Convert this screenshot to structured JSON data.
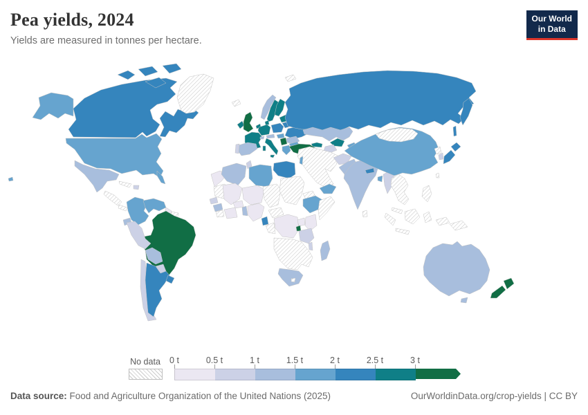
{
  "header": {
    "title": "Pea yields, 2024",
    "subtitle": "Yields are measured in tonnes per hectare."
  },
  "logo": {
    "line1": "Our World",
    "line2": "in Data"
  },
  "legend": {
    "no_data_label": "No data",
    "bins": [
      {
        "tick": "0 t",
        "label": "0–0.5 t",
        "color": "#ebe7f2"
      },
      {
        "tick": "0.5 t",
        "label": "0.5–1 t",
        "color": "#ccd1e6"
      },
      {
        "tick": "1 t",
        "label": "1–1.5 t",
        "color": "#a8bedd"
      },
      {
        "tick": "1.5 t",
        "label": "1.5–2 t",
        "color": "#66a4cf"
      },
      {
        "tick": "2 t",
        "label": "2–2.5 t",
        "color": "#3585bd"
      },
      {
        "tick": "2.5 t",
        "label": "2.5–3 t",
        "color": "#0f7f87"
      },
      {
        "tick": "3 t",
        "label": "3+ t",
        "color": "#116e45"
      }
    ]
  },
  "footer": {
    "source_label": "Data source:",
    "source_text": " Food and Agriculture Organization of the United Nations (2025)",
    "link_text": "OurWorldinData.org/crop-yields | CC BY"
  },
  "chart_data": {
    "type": "choropleth",
    "title": "Pea yields, 2024",
    "unit": "tonnes per hectare",
    "year": 2024,
    "legend_position": "bottom",
    "band_colors": {
      "b1": "#ebe7f2",
      "b2": "#ccd1e6",
      "b3": "#a8bedd",
      "b4": "#66a4cf",
      "b5": "#3585bd",
      "b6": "#0f7f87",
      "b7": "#116e45",
      "nd": "no-data"
    },
    "band_labels": {
      "b1": "0–0.5 t",
      "b2": "0.5–1 t",
      "b3": "1–1.5 t",
      "b4": "1.5–2 t",
      "b5": "2–2.5 t",
      "b6": "2.5–3 t",
      "b7": "3+ t",
      "nd": "No data"
    },
    "regions": [
      {
        "id": "alaska",
        "name": "United States (Alaska)",
        "band": "b4"
      },
      {
        "id": "usa",
        "name": "United States",
        "band": "b4"
      },
      {
        "id": "hawaii",
        "name": "Hawaii",
        "band": "b4"
      },
      {
        "id": "canada",
        "name": "Canada",
        "band": "b5"
      },
      {
        "id": "canada-east",
        "name": "Canada (Quebec-Labrador)",
        "band": "b5"
      },
      {
        "id": "arctic1",
        "name": "Canadian Arctic",
        "band": "b5"
      },
      {
        "id": "arctic2",
        "name": "Canadian Arctic",
        "band": "b5"
      },
      {
        "id": "arctic3",
        "name": "Canadian Arctic",
        "band": "b5"
      },
      {
        "id": "arctic4",
        "name": "Canadian Arctic",
        "band": "b5"
      },
      {
        "id": "greenland",
        "name": "Greenland",
        "band": "nd"
      },
      {
        "id": "iceland",
        "name": "Iceland",
        "band": "nd"
      },
      {
        "id": "mexico",
        "name": "Mexico",
        "band": "b3"
      },
      {
        "id": "central-america",
        "name": "Central America",
        "band": "nd"
      },
      {
        "id": "panama",
        "name": "Panama / Costa Rica",
        "band": "nd"
      },
      {
        "id": "cuba",
        "name": "Cuba",
        "band": "nd"
      },
      {
        "id": "hispaniola",
        "name": "Dominican Republic",
        "band": "b2"
      },
      {
        "id": "colombia",
        "name": "Colombia",
        "band": "b4"
      },
      {
        "id": "venezuela",
        "name": "Venezuela",
        "band": "b4"
      },
      {
        "id": "guyana",
        "name": "Guyana",
        "band": "b1"
      },
      {
        "id": "suriname",
        "name": "Suriname / Fr. Guiana",
        "band": "nd"
      },
      {
        "id": "ecuador",
        "name": "Ecuador",
        "band": "b3"
      },
      {
        "id": "peru",
        "name": "Peru",
        "band": "b2"
      },
      {
        "id": "brazil",
        "name": "Brazil",
        "band": "b7"
      },
      {
        "id": "bolivia",
        "name": "Bolivia",
        "band": "b3"
      },
      {
        "id": "paraguay",
        "name": "Paraguay",
        "band": "b2"
      },
      {
        "id": "chile",
        "name": "Chile",
        "band": "b2"
      },
      {
        "id": "argentina",
        "name": "Argentina",
        "band": "b5"
      },
      {
        "id": "uruguay",
        "name": "Uruguay",
        "band": "b5"
      },
      {
        "id": "ireland",
        "name": "Ireland",
        "band": "b6"
      },
      {
        "id": "uk",
        "name": "United Kingdom",
        "band": "b7"
      },
      {
        "id": "norway",
        "name": "Norway",
        "band": "b3"
      },
      {
        "id": "sweden",
        "name": "Sweden",
        "band": "b6"
      },
      {
        "id": "finland",
        "name": "Finland",
        "band": "b6"
      },
      {
        "id": "denmark",
        "name": "Denmark",
        "band": "b6"
      },
      {
        "id": "germany",
        "name": "Germany",
        "band": "b6"
      },
      {
        "id": "benelux",
        "name": "Benelux",
        "band": "b6"
      },
      {
        "id": "france",
        "name": "France",
        "band": "b6"
      },
      {
        "id": "spain",
        "name": "Spain",
        "band": "b3"
      },
      {
        "id": "portugal",
        "name": "Portugal",
        "band": "b2"
      },
      {
        "id": "italy",
        "name": "Italy",
        "band": "b6"
      },
      {
        "id": "sicily",
        "name": "Italy (Sicily)",
        "band": "b6"
      },
      {
        "id": "sardinia",
        "name": "Italy (Sardinia)",
        "band": "b6"
      },
      {
        "id": "switzerland",
        "name": "Switzerland",
        "band": "b3"
      },
      {
        "id": "austria-czech",
        "name": "Austria / Czechia",
        "band": "b3"
      },
      {
        "id": "poland",
        "name": "Poland",
        "band": "b5"
      },
      {
        "id": "baltics",
        "name": "Baltic states",
        "band": "b6"
      },
      {
        "id": "belarus",
        "name": "Belarus",
        "band": "b5"
      },
      {
        "id": "ukraine",
        "name": "Ukraine",
        "band": "b5"
      },
      {
        "id": "romania",
        "name": "Romania",
        "band": "b3"
      },
      {
        "id": "hungary",
        "name": "Hungary",
        "band": "b4"
      },
      {
        "id": "serbia",
        "name": "Serbia / Bosnia",
        "band": "b7"
      },
      {
        "id": "bulgaria",
        "name": "Bulgaria",
        "band": "b4"
      },
      {
        "id": "greece",
        "name": "Greece",
        "band": "b4"
      },
      {
        "id": "svalbard",
        "name": "Svalbard",
        "band": "nd"
      },
      {
        "id": "russia",
        "name": "Russia",
        "band": "b5"
      },
      {
        "id": "kamchatka",
        "name": "Russia (Kamchatka)",
        "band": "b5"
      },
      {
        "id": "sakhalin",
        "name": "Russia (Sakhalin)",
        "band": "b5"
      },
      {
        "id": "kazakhstan",
        "name": "Kazakhstan",
        "band": "b3"
      },
      {
        "id": "uzbekistan",
        "name": "Uzbekistan",
        "band": "b6"
      },
      {
        "id": "turkmenistan",
        "name": "Turkmenistan",
        "band": "b2"
      },
      {
        "id": "caucasus",
        "name": "Georgia / Azerbaijan",
        "band": "b6"
      },
      {
        "id": "kyrgyzstan",
        "name": "Kyrgyzstan / Tajikistan",
        "band": "b4"
      },
      {
        "id": "turkey",
        "name": "Turkey",
        "band": "b7"
      },
      {
        "id": "middle-east",
        "name": "Middle East (Syria, Iraq, Iran, Saudi Arabia)",
        "band": "nd"
      },
      {
        "id": "israel",
        "name": "Israel / Lebanon",
        "band": "b4"
      },
      {
        "id": "yemen",
        "name": "Yemen",
        "band": "b4"
      },
      {
        "id": "afghanistan",
        "name": "Afghanistan",
        "band": "b2"
      },
      {
        "id": "pakistan",
        "name": "Pakistan",
        "band": "b3"
      },
      {
        "id": "india",
        "name": "India",
        "band": "b3"
      },
      {
        "id": "nepal",
        "name": "Nepal",
        "band": "b5"
      },
      {
        "id": "bangladesh",
        "name": "Bangladesh",
        "band": "b4"
      },
      {
        "id": "sri-lanka",
        "name": "Sri Lanka",
        "band": "nd"
      },
      {
        "id": "myanmar",
        "name": "Myanmar",
        "band": "b2"
      },
      {
        "id": "china",
        "name": "China",
        "band": "b4"
      },
      {
        "id": "mongolia",
        "name": "Mongolia",
        "band": "nd"
      },
      {
        "id": "japan-n",
        "name": "Japan (Hokkaido)",
        "band": "b5"
      },
      {
        "id": "japan-s",
        "name": "Japan",
        "band": "b5"
      },
      {
        "id": "south-korea",
        "name": "South Korea",
        "band": "b2"
      },
      {
        "id": "north-korea",
        "name": "North Korea",
        "band": "nd"
      },
      {
        "id": "taiwan",
        "name": "Taiwan",
        "band": "nd"
      },
      {
        "id": "se-asia",
        "name": "Mainland Southeast Asia",
        "band": "nd"
      },
      {
        "id": "malaysia",
        "name": "Malaysia",
        "band": "nd"
      },
      {
        "id": "sumatra",
        "name": "Indonesia (Sumatra)",
        "band": "nd"
      },
      {
        "id": "java",
        "name": "Indonesia (Java)",
        "band": "nd"
      },
      {
        "id": "borneo",
        "name": "Borneo",
        "band": "nd"
      },
      {
        "id": "sulawesi",
        "name": "Indonesia (Sulawesi)",
        "band": "nd"
      },
      {
        "id": "maluku",
        "name": "Indonesia (East)",
        "band": "nd"
      },
      {
        "id": "philippines",
        "name": "Philippines",
        "band": "nd"
      },
      {
        "id": "png",
        "name": "Papua New Guinea",
        "band": "nd"
      },
      {
        "id": "morocco",
        "name": "Morocco",
        "band": "b1"
      },
      {
        "id": "algeria",
        "name": "Algeria",
        "band": "b3"
      },
      {
        "id": "tunisia",
        "name": "Tunisia",
        "band": "b2"
      },
      {
        "id": "libya",
        "name": "Libya",
        "band": "b4"
      },
      {
        "id": "egypt",
        "name": "Egypt",
        "band": "b5"
      },
      {
        "id": "mauritania",
        "name": "Mauritania / W. Sahara",
        "band": "nd"
      },
      {
        "id": "mali",
        "name": "Mali",
        "band": "b1"
      },
      {
        "id": "senegal",
        "name": "Senegal",
        "band": "b2"
      },
      {
        "id": "guinea",
        "name": "Guinea",
        "band": "b3"
      },
      {
        "id": "sierra-leone",
        "name": "Sierra Leone / Liberia",
        "band": "nd"
      },
      {
        "id": "ivory-ghana",
        "name": "Côte d'Ivoire / Ghana",
        "band": "b1"
      },
      {
        "id": "burkina",
        "name": "Burkina Faso",
        "band": "b1"
      },
      {
        "id": "niger",
        "name": "Niger",
        "band": "b1"
      },
      {
        "id": "nigeria",
        "name": "Nigeria",
        "band": "b1"
      },
      {
        "id": "benin",
        "name": "Benin / Togo",
        "band": "b3"
      },
      {
        "id": "chad",
        "name": "Chad",
        "band": "nd"
      },
      {
        "id": "sudan",
        "name": "Sudan",
        "band": "nd"
      },
      {
        "id": "eritrea",
        "name": "Eritrea / Djibouti",
        "band": "nd"
      },
      {
        "id": "ethiopia",
        "name": "Ethiopia",
        "band": "b4"
      },
      {
        "id": "somalia",
        "name": "Somalia",
        "band": "nd"
      },
      {
        "id": "cameroon",
        "name": "Cameroon",
        "band": "b5"
      },
      {
        "id": "car",
        "name": "Central African Republic",
        "band": "nd"
      },
      {
        "id": "gabon-congo",
        "name": "Gabon / Congo",
        "band": "nd"
      },
      {
        "id": "drc",
        "name": "Democratic Republic of Congo",
        "band": "b1"
      },
      {
        "id": "uganda",
        "name": "Uganda",
        "band": "b1"
      },
      {
        "id": "kenya",
        "name": "Kenya",
        "band": "b1"
      },
      {
        "id": "rwanda-burundi",
        "name": "Rwanda / Burundi",
        "band": "b7"
      },
      {
        "id": "tanzania",
        "name": "Tanzania",
        "band": "b2"
      },
      {
        "id": "malawi",
        "name": "Malawi",
        "band": "b2"
      },
      {
        "id": "southern-africa",
        "name": "Southern Africa (Angola–Mozambique)",
        "band": "nd"
      },
      {
        "id": "south-africa",
        "name": "South Africa",
        "band": "b3"
      },
      {
        "id": "lesotho",
        "name": "Lesotho",
        "band": "nd"
      },
      {
        "id": "madagascar",
        "name": "Madagascar",
        "band": "b3"
      },
      {
        "id": "australia",
        "name": "Australia",
        "band": "b3"
      },
      {
        "id": "tasmania",
        "name": "Australia (Tasmania)",
        "band": "b3"
      },
      {
        "id": "nz-north",
        "name": "New Zealand (North Island)",
        "band": "b7"
      },
      {
        "id": "nz-south",
        "name": "New Zealand (South Island)",
        "band": "b7"
      }
    ]
  }
}
